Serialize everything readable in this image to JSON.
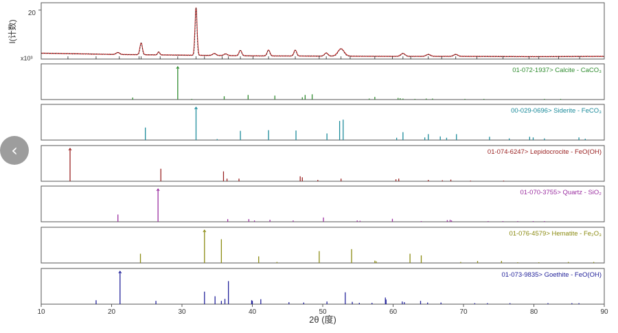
{
  "nav": {
    "back_icon": "chevron-left-icon",
    "back_glyph": "‹"
  },
  "chart_data": {
    "type": "line",
    "xlabel": "2θ (度)",
    "x_ticks": [
      10,
      20,
      30,
      40,
      50,
      60,
      70,
      80,
      90
    ],
    "xlim": [
      10,
      90
    ],
    "observed": {
      "ylabel": "I(计数)",
      "y_multiplier_label": "x10³",
      "y_tick_labels": [
        "20"
      ],
      "ylim": [
        0,
        23
      ],
      "color": "#cc2222",
      "baseline": [
        [
          10,
          2.4
        ],
        [
          20,
          1.9
        ],
        [
          30,
          1.6
        ],
        [
          40,
          1.3
        ],
        [
          50,
          1.2
        ],
        [
          60,
          1.1
        ],
        [
          70,
          1.1
        ],
        [
          80,
          1.0
        ],
        [
          90,
          1.1
        ]
      ],
      "peaks": [
        [
          20.9,
          0.8,
          0.25
        ],
        [
          24.2,
          4.8,
          0.18
        ],
        [
          26.7,
          1.2,
          0.15
        ],
        [
          32.0,
          19.5,
          0.15
        ],
        [
          34.6,
          0.8,
          0.25
        ],
        [
          36.2,
          0.7,
          0.25
        ],
        [
          38.3,
          2.2,
          0.2
        ],
        [
          42.3,
          2.4,
          0.2
        ],
        [
          46.1,
          2.4,
          0.2
        ],
        [
          50.5,
          1.3,
          0.25
        ],
        [
          52.6,
          3.0,
          0.45
        ],
        [
          61.4,
          1.2,
          0.3
        ],
        [
          65.0,
          0.8,
          0.3
        ],
        [
          68.9,
          0.8,
          0.3
        ]
      ],
      "reference_ticks": [
        13.8,
        17.8,
        21.1,
        23.9,
        24.2,
        26.9,
        29.4,
        32.0,
        33.2,
        35.7,
        36.6,
        38.3,
        40.1,
        42.3,
        46.1,
        49.5,
        50.5,
        52.6,
        53.9,
        57.4,
        59.9,
        61.4,
        62.5,
        65.0,
        66.9,
        68.9,
        71.9,
        75.6,
        79.3,
        80.7,
        83.5,
        86.5
      ]
    },
    "references": [
      {
        "label": "01-072-1937> Calcite - CaCO₃",
        "color": "#2e8b2e",
        "lines": [
          [
            23.0,
            6
          ],
          [
            29.4,
            100
          ],
          [
            31.4,
            2
          ],
          [
            36.0,
            10
          ],
          [
            39.4,
            14
          ],
          [
            43.2,
            12
          ],
          [
            47.1,
            7
          ],
          [
            47.5,
            14
          ],
          [
            48.5,
            16
          ],
          [
            56.6,
            3
          ],
          [
            57.4,
            8
          ],
          [
            60.7,
            5
          ],
          [
            61.0,
            4
          ],
          [
            61.4,
            3
          ],
          [
            63.1,
            2
          ],
          [
            64.7,
            3
          ],
          [
            65.6,
            3
          ],
          [
            70.2,
            2
          ],
          [
            72.9,
            2
          ],
          [
            81.5,
            2
          ],
          [
            83.8,
            2
          ]
        ]
      },
      {
        "label": "00-029-0696> Siderite - FeCO₃",
        "color": "#1a8a9a",
        "lines": [
          [
            24.8,
            38
          ],
          [
            32.0,
            100
          ],
          [
            35.0,
            3
          ],
          [
            38.3,
            28
          ],
          [
            42.3,
            30
          ],
          [
            46.2,
            29
          ],
          [
            50.6,
            20
          ],
          [
            52.4,
            58
          ],
          [
            52.9,
            62
          ],
          [
            60.5,
            7
          ],
          [
            61.4,
            24
          ],
          [
            64.5,
            8
          ],
          [
            65.0,
            18
          ],
          [
            66.7,
            11
          ],
          [
            67.6,
            7
          ],
          [
            69.0,
            18
          ],
          [
            73.7,
            10
          ],
          [
            76.5,
            5
          ],
          [
            79.4,
            10
          ],
          [
            79.9,
            8
          ],
          [
            81.5,
            5
          ],
          [
            86.4,
            8
          ],
          [
            87.3,
            4
          ]
        ]
      },
      {
        "label": "01-074-6247> Lepidocrocite - FeO(OH)",
        "color": "#9a2222",
        "lines": [
          [
            14.1,
            100
          ],
          [
            27.0,
            38
          ],
          [
            35.9,
            30
          ],
          [
            36.4,
            8
          ],
          [
            38.1,
            8
          ],
          [
            46.8,
            15
          ],
          [
            47.1,
            12
          ],
          [
            49.3,
            4
          ],
          [
            52.6,
            8
          ],
          [
            60.4,
            6
          ],
          [
            60.8,
            8
          ],
          [
            65.0,
            4
          ],
          [
            67.0,
            3
          ],
          [
            68.2,
            5
          ],
          [
            71.0,
            2
          ],
          [
            75.7,
            2
          ]
        ]
      },
      {
        "label": "01-070-3755> Quartz - SiO₂",
        "color": "#9a2ea0",
        "lines": [
          [
            20.9,
            22
          ],
          [
            26.6,
            100
          ],
          [
            36.5,
            8
          ],
          [
            39.5,
            8
          ],
          [
            40.3,
            4
          ],
          [
            42.5,
            6
          ],
          [
            45.8,
            4
          ],
          [
            50.1,
            13
          ],
          [
            54.9,
            4
          ],
          [
            55.3,
            3
          ],
          [
            59.9,
            9
          ],
          [
            64.0,
            2
          ],
          [
            67.7,
            5
          ],
          [
            68.1,
            6
          ],
          [
            68.3,
            4
          ],
          [
            73.5,
            2
          ],
          [
            75.6,
            2
          ],
          [
            77.7,
            2
          ],
          [
            79.9,
            2
          ],
          [
            81.5,
            2
          ]
        ]
      },
      {
        "label": "01-076-4579> Hematite - Fe₂O₃",
        "color": "#8a8a10",
        "lines": [
          [
            24.1,
            28
          ],
          [
            33.2,
            100
          ],
          [
            35.6,
            72
          ],
          [
            40.9,
            20
          ],
          [
            43.5,
            3
          ],
          [
            49.5,
            36
          ],
          [
            54.1,
            42
          ],
          [
            57.4,
            7
          ],
          [
            57.6,
            5
          ],
          [
            62.4,
            28
          ],
          [
            64.0,
            23
          ],
          [
            69.6,
            3
          ],
          [
            72.0,
            6
          ],
          [
            75.4,
            6
          ],
          [
            77.7,
            2
          ],
          [
            80.7,
            2
          ],
          [
            84.9,
            3
          ],
          [
            88.5,
            3
          ]
        ]
      },
      {
        "label": "01-073-9835> Goethite - FeO(OH)",
        "color": "#22229a",
        "lines": [
          [
            17.8,
            12
          ],
          [
            21.2,
            100
          ],
          [
            26.3,
            10
          ],
          [
            33.2,
            38
          ],
          [
            34.7,
            24
          ],
          [
            35.6,
            10
          ],
          [
            36.1,
            16
          ],
          [
            36.6,
            70
          ],
          [
            39.9,
            12
          ],
          [
            40.0,
            10
          ],
          [
            41.2,
            15
          ],
          [
            45.2,
            6
          ],
          [
            47.3,
            5
          ],
          [
            50.6,
            8
          ],
          [
            53.2,
            36
          ],
          [
            54.2,
            7
          ],
          [
            55.2,
            4
          ],
          [
            57.0,
            4
          ],
          [
            58.9,
            20
          ],
          [
            59.0,
            14
          ],
          [
            61.3,
            8
          ],
          [
            61.6,
            6
          ],
          [
            63.9,
            10
          ],
          [
            64.9,
            5
          ],
          [
            66.8,
            5
          ],
          [
            71.6,
            3
          ],
          [
            73.4,
            3
          ],
          [
            76.6,
            3
          ],
          [
            82.0,
            3
          ],
          [
            85.4,
            3
          ],
          [
            86.4,
            3
          ]
        ]
      }
    ]
  }
}
